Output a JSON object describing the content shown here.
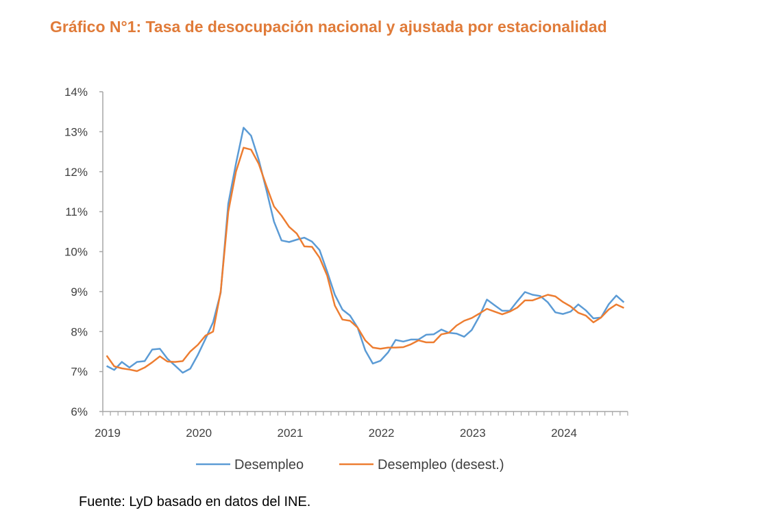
{
  "title": "Gráfico N°1: Tasa de desocupación nacional y ajustada por estacionalidad",
  "source": "Fuente: LyD basado en datos del INE.",
  "colors": {
    "title": "#E07B39",
    "desempleo": "#5B9BD5",
    "desest": "#ED7D31"
  },
  "chart_data": {
    "type": "line",
    "title": "Gráfico N°1: Tasa de desocupación nacional y ajustada por estacionalidad",
    "xlabel": "",
    "ylabel": "",
    "ylim": [
      6,
      14
    ],
    "yticks": [
      "6%",
      "7%",
      "8%",
      "9%",
      "10%",
      "11%",
      "12%",
      "13%",
      "14%"
    ],
    "xtick_labels": [
      "2019",
      "2020",
      "2021",
      "2022",
      "2023",
      "2024"
    ],
    "x_start": "2019-01",
    "x_end": "2024-09",
    "grid": false,
    "legend": "bottom",
    "series": [
      {
        "name": "Desempleo",
        "values": [
          7.14,
          7.04,
          7.24,
          7.1,
          7.24,
          7.26,
          7.55,
          7.57,
          7.32,
          7.15,
          6.97,
          7.07,
          7.42,
          7.82,
          8.23,
          8.97,
          11.2,
          12.2,
          13.1,
          12.9,
          12.3,
          11.55,
          10.75,
          10.28,
          10.24,
          10.3,
          10.35,
          10.25,
          10.04,
          9.5,
          8.92,
          8.55,
          8.4,
          8.1,
          7.53,
          7.2,
          7.27,
          7.48,
          7.79,
          7.75,
          7.8,
          7.8,
          7.92,
          7.93,
          8.05,
          7.97,
          7.95,
          7.87,
          8.04,
          8.38,
          8.8,
          8.66,
          8.52,
          8.52,
          8.76,
          8.99,
          8.92,
          8.89,
          8.73,
          8.48,
          8.44,
          8.5,
          8.68,
          8.53,
          8.33,
          8.35,
          8.68,
          8.9,
          8.73
        ]
      },
      {
        "name": "Desempleo (desest.)",
        "values": [
          7.4,
          7.13,
          7.08,
          7.05,
          7.01,
          7.1,
          7.23,
          7.38,
          7.25,
          7.24,
          7.26,
          7.5,
          7.67,
          7.9,
          8.0,
          9.0,
          11.0,
          12.0,
          12.6,
          12.55,
          12.2,
          11.65,
          11.13,
          10.9,
          10.62,
          10.45,
          10.13,
          10.12,
          9.85,
          9.4,
          8.65,
          8.3,
          8.27,
          8.1,
          7.78,
          7.6,
          7.57,
          7.6,
          7.6,
          7.61,
          7.68,
          7.78,
          7.73,
          7.73,
          7.93,
          7.97,
          8.15,
          8.27,
          8.34,
          8.45,
          8.57,
          8.5,
          8.43,
          8.5,
          8.6,
          8.78,
          8.78,
          8.85,
          8.92,
          8.88,
          8.74,
          8.63,
          8.47,
          8.4,
          8.23,
          8.35,
          8.55,
          8.68,
          8.59
        ]
      }
    ]
  }
}
